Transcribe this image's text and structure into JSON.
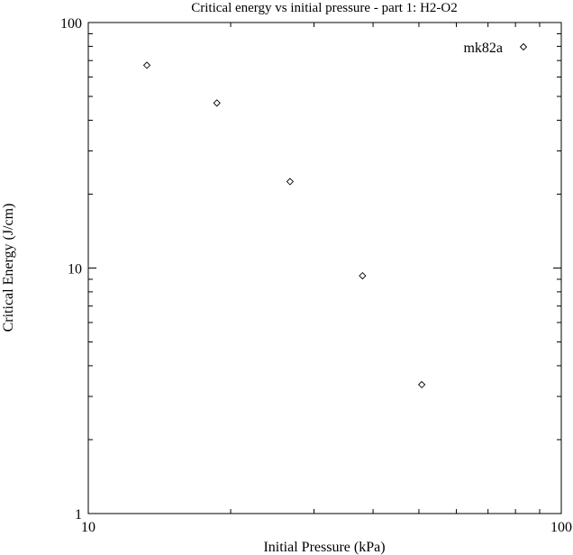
{
  "chart_data": {
    "type": "scatter",
    "title": "Critical energy vs initial pressure - part 1: H2-O2",
    "xlabel": "Initial Pressure (kPa)",
    "ylabel": "Critical Energy (J/cm)",
    "x_scale": "log",
    "y_scale": "log",
    "xlim": [
      10,
      100
    ],
    "ylim": [
      1,
      100
    ],
    "x_tick_labels": [
      {
        "value": 10,
        "label": "10"
      },
      {
        "value": 100,
        "label": "100"
      }
    ],
    "y_tick_labels": [
      {
        "value": 1,
        "label": "1"
      },
      {
        "value": 10,
        "label": "10"
      },
      {
        "value": 100,
        "label": "100"
      }
    ],
    "grid": false,
    "legend_position": "top-right",
    "series": [
      {
        "name": "mk82a",
        "marker": "diamond",
        "color": "#000000",
        "points": [
          {
            "x": 13.3,
            "y": 67
          },
          {
            "x": 18.7,
            "y": 47
          },
          {
            "x": 26.7,
            "y": 22.5
          },
          {
            "x": 38.0,
            "y": 9.3
          },
          {
            "x": 50.7,
            "y": 3.35
          }
        ]
      }
    ]
  }
}
